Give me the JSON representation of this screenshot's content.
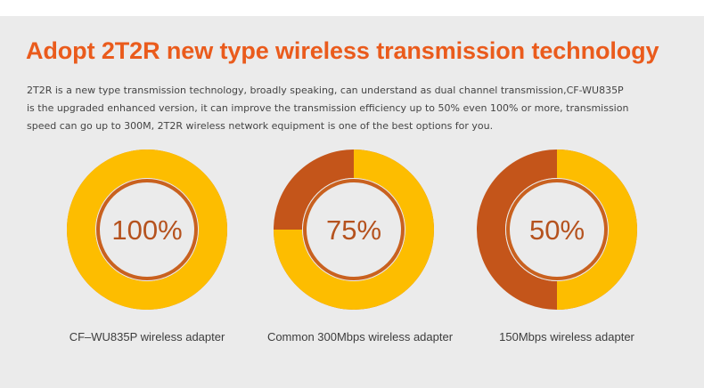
{
  "header": {
    "title": "Adopt 2T2R new type wireless transmission technology"
  },
  "description": {
    "lines": [
      "2T2R is a new type transmission technology, broadly speaking, can understand as dual channel transmission,CF-WU835P",
      " is the upgraded enhanced version, it can improve the transmission efficiency up to 50% even 100% or more, transmission",
      "speed can go up to 300M, 2T2R wireless network equipment is one of the best options for you."
    ]
  },
  "colors": {
    "accent": "#ea5b1c",
    "ring_filled": "#fdbd00",
    "ring_remaining": "#c4551a",
    "background": "#ebebeb"
  },
  "gauges": [
    {
      "value": 100,
      "label": "100%",
      "caption": "CF–WU835P wireless adapter"
    },
    {
      "value": 75,
      "label": "75%",
      "caption": "Common 300Mbps wireless adapter"
    },
    {
      "value": 50,
      "label": "50%",
      "caption": "150Mbps wireless adapter"
    }
  ]
}
